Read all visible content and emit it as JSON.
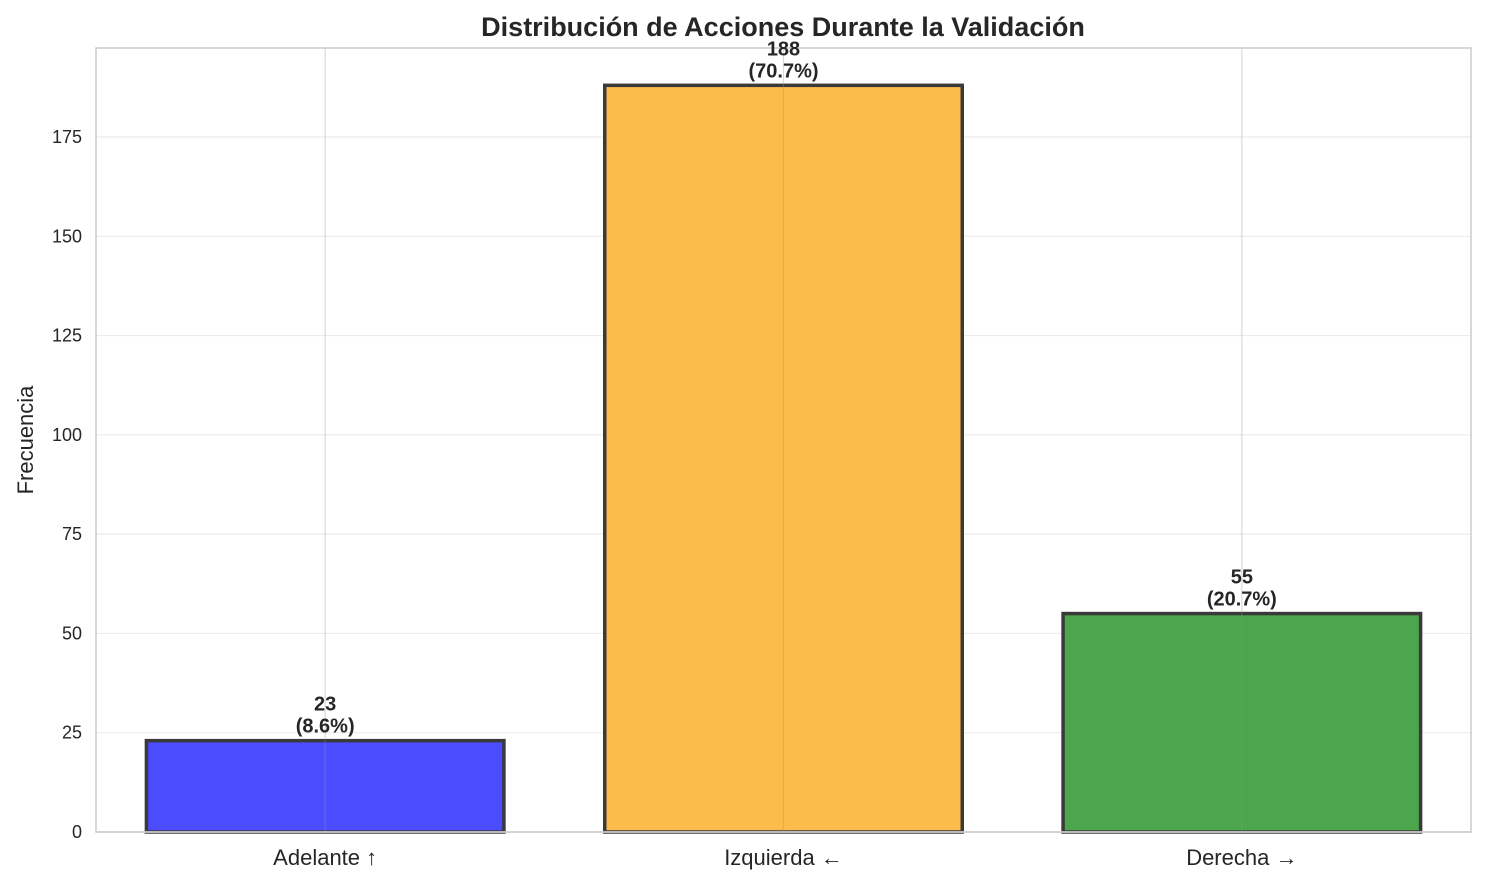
{
  "chart_data": {
    "type": "bar",
    "title": "Distribución de Acciones Durante la Validación",
    "xlabel": "",
    "ylabel": "Frecuencia",
    "categories": [
      "Adelante ↑",
      "Izquierda ←",
      "Derecha →"
    ],
    "values": [
      23,
      188,
      55
    ],
    "value_labels": [
      "23",
      "188",
      "55"
    ],
    "percent_labels": [
      "(8.6%)",
      "(70.7%)",
      "(20.7%)"
    ],
    "colors": [
      "#4c4cff",
      "#fcbc4c",
      "#4ca64c"
    ],
    "ylim": [
      0,
      197.4
    ],
    "yticks": [
      0,
      25,
      50,
      75,
      100,
      125,
      150,
      175
    ],
    "grid": true,
    "legend": "none"
  }
}
